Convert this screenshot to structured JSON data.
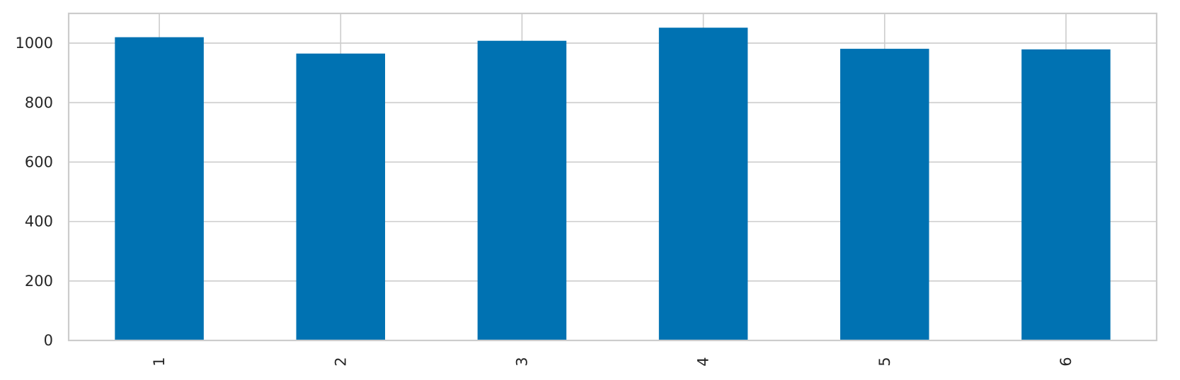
{
  "chart_data": {
    "type": "bar",
    "categories": [
      "1",
      "2",
      "3",
      "4",
      "5",
      "6"
    ],
    "values": [
      1020,
      965,
      1008,
      1052,
      981,
      979
    ],
    "title": "",
    "xlabel": "",
    "ylabel": "",
    "ylim": [
      0,
      1100
    ],
    "yticks": [
      0,
      200,
      400,
      600,
      800,
      1000
    ],
    "ytick_labels": [
      "0",
      "200",
      "400",
      "600",
      "800",
      "1000"
    ],
    "xtick_rotation": "vertical",
    "grid": true,
    "legend": "none",
    "colors": {
      "bar": "#0072b2",
      "grid": "#cccccc",
      "frame": "#cccccc",
      "text": "#262626",
      "background": "#ffffff"
    }
  }
}
